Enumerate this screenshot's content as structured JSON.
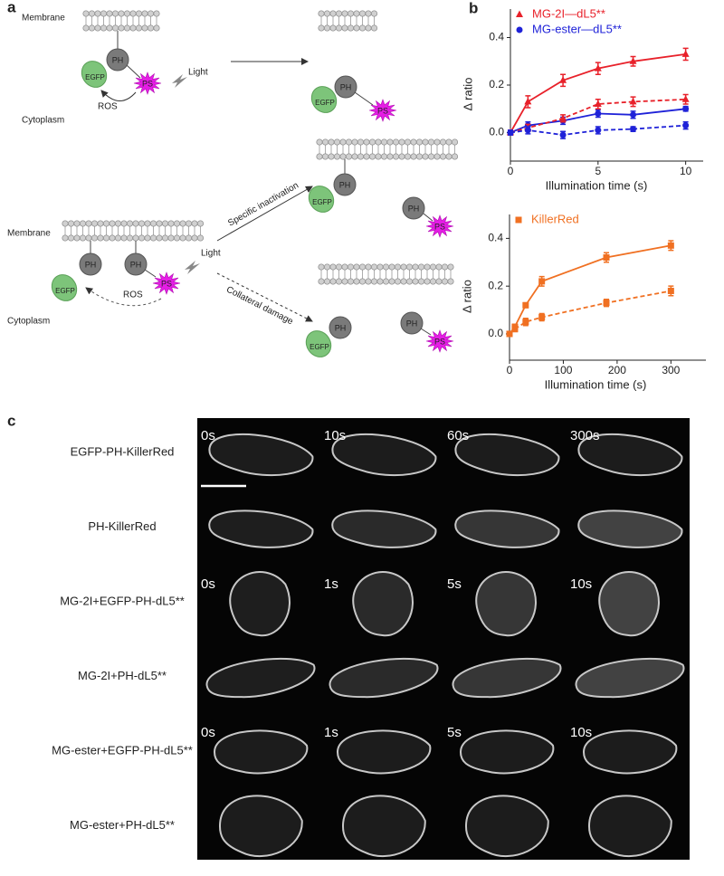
{
  "panel_a": {
    "label": "a",
    "membrane": "Membrane",
    "cytoplasm": "Cytoplasm",
    "egfp": "EGFP",
    "ph": "PH",
    "ps": "PS",
    "light": "Light",
    "ros": "ROS",
    "specific": "Specific inactivation",
    "collateral": "Collateral damage"
  },
  "panel_b": {
    "label": "b"
  },
  "chart_data": [
    {
      "type": "line",
      "ylabel": "Δ ratio",
      "xlabel": "Illumination time (s)",
      "x": [
        0,
        1,
        3,
        5,
        7,
        10
      ],
      "xlim": [
        0,
        11
      ],
      "xticks": [
        0,
        5,
        10
      ],
      "ylim": [
        -0.12,
        0.52
      ],
      "yticks": [
        {
          "value": 0,
          "label": "0.0"
        },
        0.2,
        0.4
      ],
      "legend": "top-left",
      "series": [
        {
          "name": "MG-2I—dL5**",
          "color": "#e8212a",
          "marker": "triangle",
          "dash": "solid",
          "values": [
            0,
            0.13,
            0.22,
            0.27,
            0.3,
            0.33
          ],
          "errors": [
            0.01,
            0.025,
            0.025,
            0.025,
            0.02,
            0.025
          ]
        },
        {
          "name": "MG-ester—dL5**",
          "color": "#1f22d8",
          "marker": "circle",
          "dash": "solid",
          "values": [
            0,
            0.03,
            0.05,
            0.08,
            0.075,
            0.1
          ],
          "errors": [
            0.01,
            0.015,
            0.015,
            0.015,
            0.015,
            0.01
          ]
        },
        {
          "color": "#e8212a",
          "marker": "triangle",
          "dash": "dashed",
          "values": [
            0,
            0.02,
            0.06,
            0.12,
            0.13,
            0.14
          ],
          "errors": [
            0.01,
            0.015,
            0.015,
            0.02,
            0.02,
            0.02
          ]
        },
        {
          "color": "#1f22d8",
          "marker": "circle",
          "dash": "dashed",
          "values": [
            0,
            0.01,
            -0.01,
            0.01,
            0.015,
            0.03
          ],
          "errors": [
            0.01,
            0.015,
            0.015,
            0.015,
            0.01,
            0.015
          ]
        }
      ]
    },
    {
      "type": "line",
      "ylabel": "Δ ratio",
      "xlabel": "Illumination time (s)",
      "x": [
        0,
        10,
        30,
        60,
        180,
        300
      ],
      "xlim": [
        0,
        365
      ],
      "xticks": [
        0,
        100,
        200,
        300
      ],
      "ylim": [
        -0.11,
        0.5
      ],
      "yticks": [
        {
          "value": 0,
          "label": "0.0"
        },
        0.2,
        0.4
      ],
      "legend": "top-left",
      "series": [
        {
          "name": "KillerRed",
          "color": "#f07022",
          "marker": "square",
          "dash": "solid",
          "values": [
            0,
            0.03,
            0.12,
            0.22,
            0.32,
            0.37
          ],
          "errors": [
            0.005,
            0.01,
            0.01,
            0.02,
            0.02,
            0.02
          ]
        },
        {
          "color": "#f07022",
          "marker": "square",
          "dash": "dashed",
          "values": [
            0,
            0.02,
            0.05,
            0.07,
            0.13,
            0.18
          ],
          "errors": [
            0.005,
            0.01,
            0.015,
            0.015,
            0.015,
            0.02
          ]
        }
      ]
    }
  ],
  "panel_c": {
    "label": "c",
    "rows": [
      "EGFP-PH-KillerRed",
      "PH-KillerRed",
      "MG-2I+EGFP-PH-dL5**",
      "MG-2I+PH-dL5**",
      "MG-ester+EGFP-PH-dL5**",
      "MG-ester+PH-dL5**"
    ],
    "time_labels": [
      [
        "0s",
        "10s",
        "60s",
        "300s"
      ],
      [
        "0s",
        "1s",
        "5s",
        "10s"
      ],
      [
        "0s",
        "1s",
        "5s",
        "10s"
      ]
    ]
  }
}
